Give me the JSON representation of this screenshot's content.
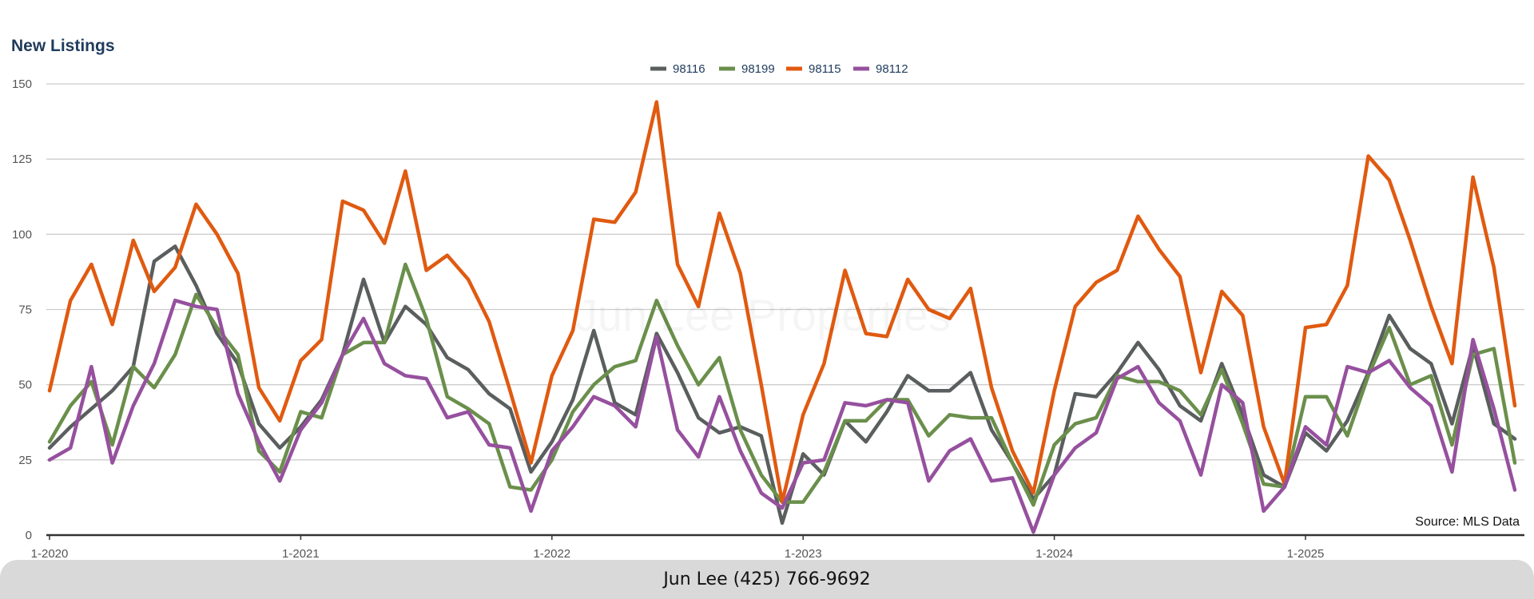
{
  "chart_data": {
    "type": "line",
    "title": "New Listings",
    "source": "Source: MLS Data",
    "ylim": [
      0,
      150
    ],
    "yticks": [
      0,
      25,
      50,
      75,
      100,
      125,
      150
    ],
    "x_tick_labels": [
      "1-2020",
      "1-2021",
      "1-2022",
      "1-2023",
      "1-2024",
      "1-2025"
    ],
    "x_start": "2020-01",
    "x_end": "2025-11",
    "series": [
      {
        "name": "98116",
        "color": "#5a5e5e",
        "values": [
          29,
          36,
          42,
          48,
          56,
          91,
          96,
          83,
          67,
          57,
          37,
          29,
          36,
          45,
          60,
          85,
          64,
          76,
          70,
          59,
          55,
          47,
          42,
          21,
          31,
          45,
          68,
          44,
          40,
          67,
          54,
          39,
          34,
          36,
          33,
          4,
          27,
          20,
          38,
          31,
          41,
          53,
          48,
          48,
          54,
          35,
          24,
          12,
          20,
          47,
          46,
          54,
          64,
          55,
          43,
          38,
          57,
          40,
          20,
          16,
          34,
          28,
          38,
          54,
          73,
          62,
          57,
          37,
          63,
          37,
          32
        ]
      },
      {
        "name": "98199",
        "color": "#6a8f4b",
        "values": [
          31,
          43,
          51,
          30,
          56,
          49,
          60,
          80,
          69,
          60,
          28,
          21,
          41,
          39,
          60,
          64,
          64,
          90,
          72,
          46,
          42,
          37,
          16,
          15,
          25,
          41,
          50,
          56,
          58,
          78,
          63,
          50,
          59,
          35,
          20,
          11,
          11,
          21,
          38,
          38,
          45,
          45,
          33,
          40,
          39,
          39,
          24,
          10,
          30,
          37,
          39,
          53,
          51,
          51,
          48,
          40,
          55,
          37,
          17,
          16,
          46,
          46,
          33,
          53,
          69,
          50,
          53,
          30,
          60,
          62,
          24
        ]
      },
      {
        "name": "98115",
        "color": "#e05a10",
        "values": [
          48,
          78,
          90,
          70,
          98,
          81,
          89,
          110,
          100,
          87,
          49,
          38,
          58,
          65,
          111,
          108,
          97,
          121,
          88,
          93,
          85,
          71,
          48,
          24,
          53,
          68,
          105,
          104,
          114,
          144,
          90,
          76,
          107,
          87,
          50,
          11,
          40,
          57,
          88,
          67,
          66,
          85,
          75,
          72,
          82,
          49,
          28,
          14,
          48,
          76,
          84,
          88,
          106,
          95,
          86,
          54,
          81,
          73,
          36,
          17,
          69,
          70,
          83,
          126,
          118,
          98,
          76,
          57,
          119,
          89,
          43
        ]
      },
      {
        "name": "98112",
        "color": "#96509e",
        "values": [
          25,
          29,
          56,
          24,
          43,
          57,
          78,
          76,
          75,
          47,
          31,
          18,
          35,
          44,
          60,
          72,
          57,
          53,
          52,
          39,
          41,
          30,
          29,
          8,
          28,
          36,
          46,
          43,
          36,
          66,
          35,
          26,
          46,
          28,
          14,
          9,
          24,
          25,
          44,
          43,
          45,
          44,
          18,
          28,
          32,
          18,
          19,
          1,
          20,
          29,
          34,
          52,
          56,
          44,
          38,
          20,
          50,
          44,
          8,
          16,
          36,
          30,
          56,
          54,
          58,
          49,
          43,
          21,
          65,
          42,
          15
        ]
      }
    ]
  },
  "footer": {
    "contact": "Jun Lee (425) 766-9692"
  },
  "watermark": {
    "text": "Jun Lee Properties"
  }
}
